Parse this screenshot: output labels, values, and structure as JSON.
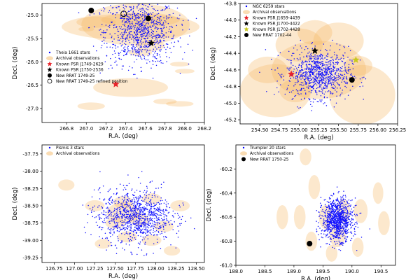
{
  "chart_data": [
    {
      "type": "scatter",
      "xlabel": "R.A. (deg)",
      "ylabel": "Decl. (deg)",
      "xlim": [
        266.55,
        268.2
      ],
      "ylim": [
        -27.3,
        -24.75
      ],
      "xticks": [
        "266.8",
        "267.0",
        "267.2",
        "267.4",
        "267.6",
        "267.8",
        "268.0",
        "268.2"
      ],
      "xtick_values": [
        266.8,
        267.0,
        267.2,
        267.4,
        267.6,
        267.8,
        268.0,
        268.2
      ],
      "yticks": [
        "-25.0",
        "-25.5",
        "-26.0",
        "-26.5",
        "-27.0"
      ],
      "ytick_values": [
        -25.0,
        -25.5,
        -26.0,
        -26.5,
        -27.0
      ],
      "legend": {
        "position": "left",
        "entries": [
          {
            "label": "Theia 1661 stars",
            "marker": "dot",
            "color": "#0000ff"
          },
          {
            "label": "Archival observations",
            "marker": "ellipse",
            "color": "#f5c27a"
          },
          {
            "label": "Known PSR J1749-2629",
            "marker": "star",
            "color": "#e8232a"
          },
          {
            "label": "Known PSR J1750-2536",
            "marker": "star",
            "color": "#000000"
          },
          {
            "label": "New RRAT 1749-25",
            "marker": "circle",
            "color": "#000000"
          },
          {
            "label": "New RRAT 1749-25 refined position",
            "marker": "open-circle",
            "color": "#000000"
          }
        ]
      },
      "cluster": {
        "cx": 267.55,
        "cy": -25.35,
        "sx": 0.18,
        "sy": 0.35,
        "n": 900,
        "halo": 60,
        "ymin": -26.4
      },
      "archival": [
        {
          "ra": 267.5,
          "dec": -25.2,
          "rx": 0.55,
          "ry": 0.45
        },
        {
          "ra": 267.45,
          "dec": -25.25,
          "rx": 0.7,
          "ry": 0.28
        },
        {
          "ra": 267.55,
          "dec": -25.1,
          "rx": 0.4,
          "ry": 0.15
        },
        {
          "ra": 267.1,
          "dec": -25.15,
          "rx": 0.2,
          "ry": 0.12
        },
        {
          "ra": 267.65,
          "dec": -25.65,
          "rx": 0.15,
          "ry": 0.12
        },
        {
          "ra": 267.55,
          "dec": -25.8,
          "rx": 0.12,
          "ry": 0.08
        },
        {
          "ra": 267.45,
          "dec": -26.55,
          "rx": 0.38,
          "ry": 0.2
        },
        {
          "ra": 267.8,
          "dec": -26.85,
          "rx": 0.12,
          "ry": 0.06
        },
        {
          "ra": 267.95,
          "dec": -26.9,
          "rx": 0.14,
          "ry": 0.06
        },
        {
          "ra": 267.05,
          "dec": -26.95,
          "rx": 0.14,
          "ry": 0.08
        },
        {
          "ra": 267.95,
          "dec": -26.05,
          "rx": 0.1,
          "ry": 0.05
        },
        {
          "ra": 268.0,
          "dec": -26.2,
          "rx": 0.1,
          "ry": 0.05
        },
        {
          "ra": 267.0,
          "dec": -25.3,
          "rx": 0.08,
          "ry": 0.05
        }
      ],
      "markers": [
        {
          "label": "Known PSR J1749-2629",
          "shape": "star",
          "color": "#e8232a",
          "ra": 267.3,
          "dec": -26.48
        },
        {
          "label": "Known PSR J1750-2536",
          "shape": "star",
          "color": "#000000",
          "ra": 267.66,
          "dec": -25.6
        },
        {
          "label": "New RRAT 1749-25",
          "shape": "circle",
          "color": "#000000",
          "ra": 267.05,
          "dec": -24.9
        },
        {
          "label": "New RRAT 1749-25 refined position",
          "shape": "open-circle",
          "color": "#000000",
          "ra": 267.38,
          "dec": -24.97
        },
        {
          "label": "New RRAT 1749-25",
          "shape": "circle",
          "color": "#000000",
          "ra": 267.63,
          "dec": -25.07
        }
      ]
    },
    {
      "type": "scatter",
      "xlabel": "R.A. (deg)",
      "ylabel": "Decl. (deg)",
      "xlim": [
        254.25,
        256.25
      ],
      "ylim": [
        -45.25,
        -43.8
      ],
      "xticks": [
        "254.50",
        "254.75",
        "255.00",
        "255.25",
        "255.50",
        "255.75",
        "256.00",
        "256.25"
      ],
      "xtick_values": [
        254.5,
        254.75,
        255.0,
        255.25,
        255.5,
        255.75,
        256.0,
        256.25
      ],
      "yticks": [
        "-43.8",
        "-44.0",
        "-44.2",
        "-44.4",
        "-44.6",
        "-44.8",
        "-45.0",
        "-45.2"
      ],
      "ytick_values": [
        -43.8,
        -44.0,
        -44.2,
        -44.4,
        -44.6,
        -44.8,
        -45.0,
        -45.2
      ],
      "legend": {
        "position": "top-left",
        "entries": [
          {
            "label": "NGC 6259 stars",
            "marker": "dot",
            "color": "#0000ff"
          },
          {
            "label": "Archival observations",
            "marker": "ellipse",
            "color": "#f5c27a"
          },
          {
            "label": "Known PSR J1659-4439",
            "marker": "star",
            "color": "#e8232a"
          },
          {
            "label": "Known PSR J1700-4422",
            "marker": "star",
            "color": "#000000"
          },
          {
            "label": "Known PSR J1702-4428",
            "marker": "star",
            "color": "#c8c81e"
          },
          {
            "label": "New RRAT 1702-44",
            "marker": "circle",
            "color": "#000000"
          }
        ]
      },
      "cluster": {
        "cx": 255.25,
        "cy": -44.65,
        "sx": 0.2,
        "sy": 0.14,
        "n": 900,
        "halo": 80
      },
      "archival": [
        {
          "ra": 255.25,
          "dec": -44.6,
          "rx": 0.6,
          "ry": 0.35
        },
        {
          "ra": 254.7,
          "dec": -44.85,
          "rx": 0.45,
          "ry": 0.32
        },
        {
          "ra": 255.8,
          "dec": -44.9,
          "rx": 0.42,
          "ry": 0.36
        },
        {
          "ra": 255.0,
          "dec": -44.3,
          "rx": 0.3,
          "ry": 0.2
        },
        {
          "ra": 255.5,
          "dec": -44.25,
          "rx": 0.32,
          "ry": 0.22
        },
        {
          "ra": 255.2,
          "dec": -44.15,
          "rx": 0.22,
          "ry": 0.15
        },
        {
          "ra": 254.6,
          "dec": -44.6,
          "rx": 0.25,
          "ry": 0.16
        },
        {
          "ra": 255.75,
          "dec": -44.55,
          "rx": 0.18,
          "ry": 0.12
        },
        {
          "ra": 254.95,
          "dec": -44.85,
          "rx": 0.2,
          "ry": 0.14
        }
      ],
      "markers": [
        {
          "label": "Known PSR J1659-4439",
          "shape": "star",
          "color": "#e8232a",
          "ra": 254.9,
          "dec": -44.65
        },
        {
          "label": "Known PSR J1700-4422",
          "shape": "star",
          "color": "#000000",
          "ra": 255.2,
          "dec": -44.37
        },
        {
          "label": "Known PSR J1702-4428",
          "shape": "star",
          "color": "#c8c81e",
          "ra": 255.72,
          "dec": -44.48
        },
        {
          "label": "New RRAT 1702-44",
          "shape": "circle",
          "color": "#000000",
          "ra": 255.67,
          "dec": -44.72
        }
      ]
    },
    {
      "type": "scatter",
      "xlabel": "R.A. (deg)",
      "ylabel": "Decl. (deg)",
      "xlim": [
        126.6,
        128.6
      ],
      "ylim": [
        -39.32,
        -37.62
      ],
      "xticks": [
        "126.75",
        "127.00",
        "127.25",
        "127.50",
        "127.75",
        "128.00",
        "128.25",
        "128.50"
      ],
      "xtick_values": [
        126.75,
        127.0,
        127.25,
        127.5,
        127.75,
        128.0,
        128.25,
        128.5
      ],
      "yticks": [
        "-37.75",
        "-38.00",
        "-38.25",
        "-38.50",
        "-38.75",
        "-39.00",
        "-39.25"
      ],
      "ytick_values": [
        -37.75,
        -38.0,
        -38.25,
        -38.5,
        -38.75,
        -39.0,
        -39.25
      ],
      "legend": {
        "position": "top-left",
        "entries": [
          {
            "label": "Pismis 3 stars",
            "marker": "dot",
            "color": "#0000ff"
          },
          {
            "label": "Archival observations",
            "marker": "ellipse",
            "color": "#f5c27a"
          }
        ]
      },
      "cluster": {
        "cx": 127.75,
        "cy": -38.65,
        "sx": 0.22,
        "sy": 0.18,
        "n": 1000,
        "halo": 180
      },
      "archival": [
        {
          "ra": 126.9,
          "dec": -38.2,
          "rx": 0.1,
          "ry": 0.08
        },
        {
          "ra": 127.25,
          "dec": -38.5,
          "rx": 0.12,
          "ry": 0.08
        },
        {
          "ra": 127.6,
          "dec": -38.45,
          "rx": 0.12,
          "ry": 0.09
        },
        {
          "ra": 127.95,
          "dec": -38.4,
          "rx": 0.12,
          "ry": 0.08
        },
        {
          "ra": 128.3,
          "dec": -38.5,
          "rx": 0.12,
          "ry": 0.08
        },
        {
          "ra": 127.5,
          "dec": -38.75,
          "rx": 0.12,
          "ry": 0.08
        },
        {
          "ra": 127.8,
          "dec": -38.7,
          "rx": 0.12,
          "ry": 0.09
        },
        {
          "ra": 128.1,
          "dec": -38.8,
          "rx": 0.12,
          "ry": 0.08
        },
        {
          "ra": 127.65,
          "dec": -38.95,
          "rx": 0.12,
          "ry": 0.08
        },
        {
          "ra": 127.95,
          "dec": -39.0,
          "rx": 0.12,
          "ry": 0.08
        },
        {
          "ra": 127.35,
          "dec": -39.05,
          "rx": 0.1,
          "ry": 0.07
        },
        {
          "ra": 128.2,
          "dec": -39.15,
          "rx": 0.1,
          "ry": 0.07
        },
        {
          "ra": 127.6,
          "dec": -38.6,
          "rx": 0.2,
          "ry": 0.15
        }
      ],
      "markers": []
    },
    {
      "type": "scatter",
      "xlabel": "R.A. (deg)",
      "ylabel": "Decl. (deg)",
      "xlim": [
        188.0,
        190.75
      ],
      "ylim": [
        -61.0,
        -60.0
      ],
      "xticks": [
        "188.0",
        "188.5",
        "189.0",
        "189.5",
        "190.0",
        "190.5"
      ],
      "xtick_values": [
        188.0,
        188.5,
        189.0,
        189.5,
        190.0,
        190.5
      ],
      "yticks": [
        "-60.2",
        "-60.4",
        "-60.6",
        "-60.8",
        "-61.0"
      ],
      "ytick_values": [
        -60.2,
        -60.4,
        -60.6,
        -60.8,
        -61.0
      ],
      "legend": {
        "position": "top-left",
        "entries": [
          {
            "label": "Trumpler 20 stars",
            "marker": "dot",
            "color": "#0000ff"
          },
          {
            "label": "Archival observations",
            "marker": "ellipse",
            "color": "#f5c27a"
          },
          {
            "label": "New RRAT 1750-25",
            "marker": "circle",
            "color": "#000000"
          }
        ]
      },
      "cluster": {
        "cx": 189.75,
        "cy": -60.62,
        "sx": 0.13,
        "sy": 0.085,
        "n": 1000,
        "halo": 160
      },
      "archival": [
        {
          "ra": 189.2,
          "dec": -60.1,
          "rx": 0.1,
          "ry": 0.07
        },
        {
          "ra": 189.35,
          "dec": -60.35,
          "rx": 0.1,
          "ry": 0.1
        },
        {
          "ra": 190.45,
          "dec": -60.4,
          "rx": 0.09,
          "ry": 0.09
        },
        {
          "ra": 188.8,
          "dec": -60.6,
          "rx": 0.1,
          "ry": 0.1
        },
        {
          "ra": 189.1,
          "dec": -60.6,
          "rx": 0.1,
          "ry": 0.1
        },
        {
          "ra": 190.55,
          "dec": -60.65,
          "rx": 0.1,
          "ry": 0.1
        },
        {
          "ra": 189.55,
          "dec": -60.6,
          "rx": 0.12,
          "ry": 0.1
        },
        {
          "ra": 189.85,
          "dec": -60.55,
          "rx": 0.12,
          "ry": 0.1
        },
        {
          "ra": 190.15,
          "dec": -60.55,
          "rx": 0.12,
          "ry": 0.1
        },
        {
          "ra": 189.75,
          "dec": -60.75,
          "rx": 0.14,
          "ry": 0.1
        },
        {
          "ra": 189.3,
          "dec": -60.8,
          "rx": 0.1,
          "ry": 0.08
        },
        {
          "ra": 190.1,
          "dec": -60.85,
          "rx": 0.1,
          "ry": 0.08
        },
        {
          "ra": 189.65,
          "dec": -60.9,
          "rx": 0.1,
          "ry": 0.07
        }
      ],
      "markers": [
        {
          "label": "New RRAT 1750-25",
          "shape": "circle",
          "color": "#000000",
          "ra": 189.27,
          "dec": -60.82
        }
      ]
    }
  ]
}
